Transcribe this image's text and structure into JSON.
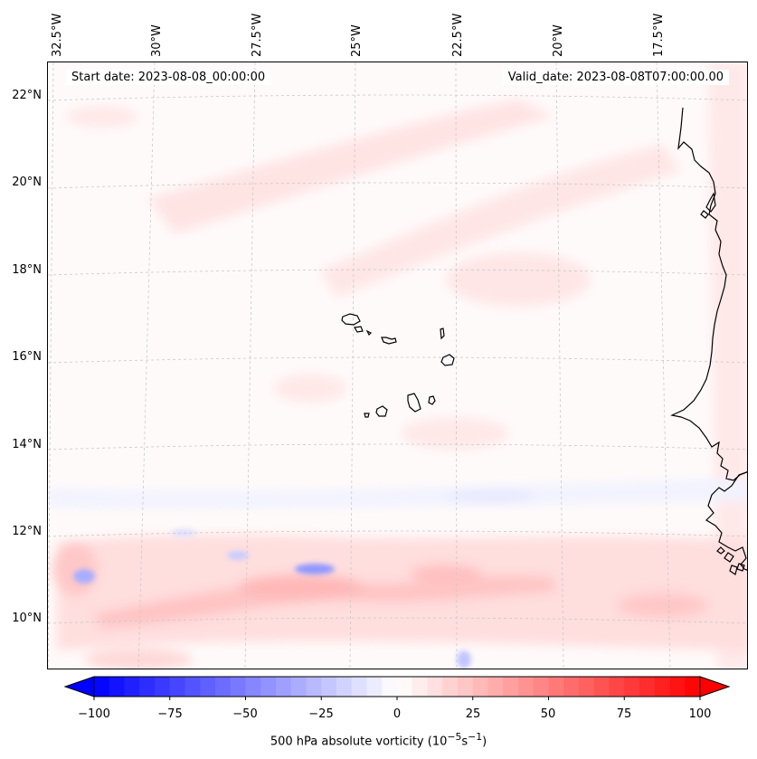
{
  "map": {
    "start_date_text": "Start date: 2023-08-08_00:00:00",
    "valid_date_text": "Valid_date: 2023-08-08T07:00:00.00",
    "longitude_labels": [
      "32.5°W",
      "30°W",
      "27.5°W",
      "25°W",
      "22.5°W",
      "20°W",
      "17.5°W"
    ],
    "latitude_labels": [
      "22°N",
      "20°N",
      "18°N",
      "16°N",
      "14°N",
      "12°N",
      "10°N"
    ],
    "extent": {
      "lon_min": -32.6,
      "lon_max": -15.4,
      "lat_min": 8.9,
      "lat_max": 22.8
    },
    "colors": {
      "positive": "#ff0000",
      "negative": "#0000ff",
      "neutral": "#ffffff",
      "coastline": "#000000",
      "gridline": "#bbbbbb"
    },
    "grid": true
  },
  "colorbar": {
    "label_text": "500 hPa absolute vorticity (10⁻⁵s⁻¹)",
    "label_prefix": "500 hPa absolute vorticity (10",
    "label_exponent": "−5",
    "label_mid": "s",
    "label_exponent2": "−1",
    "label_suffix": ")",
    "ticks": [
      "−100",
      "−75",
      "−50",
      "−25",
      "0",
      "25",
      "50",
      "75",
      "100"
    ],
    "min": -100,
    "max": 100,
    "levels": 40
  }
}
